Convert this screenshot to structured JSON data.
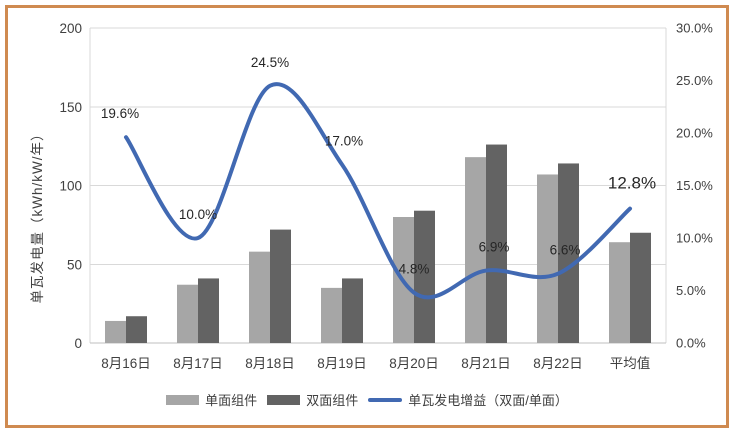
{
  "chart_data": {
    "type": "bar+line",
    "categories": [
      "8月16日",
      "8月17日",
      "8月18日",
      "8月19日",
      "8月20日",
      "8月21日",
      "8月22日",
      "平均值"
    ],
    "series": [
      {
        "name": "单面组件",
        "type": "bar",
        "color": "#a6a6a6",
        "values": [
          14,
          37,
          58,
          35,
          80,
          118,
          107,
          64
        ]
      },
      {
        "name": "双面组件",
        "type": "bar",
        "color": "#636363",
        "values": [
          17,
          41,
          72,
          41,
          84,
          126,
          114,
          70
        ]
      }
    ],
    "line_series": {
      "name": "单瓦发电增益（双面/单面）",
      "color": "#4169b2",
      "values_pct": [
        19.6,
        10.0,
        24.5,
        17.0,
        4.8,
        6.9,
        6.6,
        12.8
      ],
      "labels": [
        "19.6%",
        "10.0%",
        "24.5%",
        "17.0%",
        "4.8%",
        "6.9%",
        "6.6%",
        "12.8%"
      ],
      "emphasized_label_index": 7
    },
    "ylabel_left": "单瓦发电量（kWh/kW/年）",
    "left_axis": {
      "min": 0,
      "max": 200,
      "ticks": [
        "0",
        "50",
        "100",
        "150",
        "200"
      ]
    },
    "right_axis": {
      "min": 0,
      "max": 30,
      "ticks": [
        "0.0%",
        "5.0%",
        "10.0%",
        "15.0%",
        "20.0%",
        "25.0%",
        "30.0%"
      ]
    },
    "grid": true,
    "legend_position": "bottom",
    "colors": {
      "frame_border": "#cf8a50",
      "gridline": "#d9d9d9",
      "axis_line": "#bfbfbf",
      "axis_text": "#404040",
      "data_label_text": "#262626"
    }
  }
}
